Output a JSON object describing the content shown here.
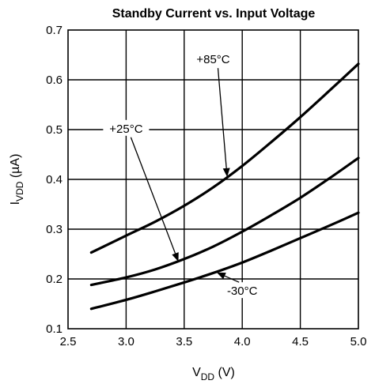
{
  "chart_data": {
    "type": "line",
    "title": "Standby Current vs. Input Voltage",
    "xlabel": {
      "main": "V",
      "sub": "DD",
      "unit": " (V)"
    },
    "ylabel": {
      "main": "I",
      "sub": "VDD",
      "unit": " (µA)"
    },
    "xlim": [
      2.5,
      5.0
    ],
    "ylim": [
      0.1,
      0.7
    ],
    "x_ticks": [
      "2.5",
      "3.0",
      "3.5",
      "4.0",
      "4.5",
      "5.0"
    ],
    "y_ticks": [
      "0.1",
      "0.2",
      "0.3",
      "0.4",
      "0.5",
      "0.6",
      "0.7"
    ],
    "grid": true,
    "series": [
      {
        "name": "+85°C",
        "x": [
          2.7,
          3.0,
          3.25,
          3.5,
          3.75,
          4.0,
          4.25,
          4.5,
          4.75,
          5.0
        ],
        "y": [
          0.253,
          0.287,
          0.315,
          0.347,
          0.384,
          0.427,
          0.475,
          0.525,
          0.578,
          0.632
        ]
      },
      {
        "name": "+25°C",
        "x": [
          2.7,
          3.0,
          3.25,
          3.5,
          3.75,
          4.0,
          4.25,
          4.5,
          4.75,
          5.0
        ],
        "y": [
          0.188,
          0.203,
          0.219,
          0.24,
          0.265,
          0.295,
          0.328,
          0.363,
          0.402,
          0.443
        ]
      },
      {
        "name": "-30°C",
        "x": [
          2.7,
          3.0,
          3.25,
          3.5,
          3.75,
          4.0,
          4.25,
          4.5,
          4.75,
          5.0
        ],
        "y": [
          0.14,
          0.158,
          0.175,
          0.193,
          0.212,
          0.233,
          0.257,
          0.282,
          0.307,
          0.333
        ]
      }
    ],
    "annotations": [
      {
        "text": "+85°C",
        "series": 0,
        "label_at": [
          3.75,
          0.633
        ],
        "arrow_to": [
          3.87,
          0.405
        ]
      },
      {
        "text": "+25°C",
        "series": 1,
        "label_at": [
          3.0,
          0.494
        ],
        "arrow_to": [
          3.45,
          0.235
        ]
      },
      {
        "text": "-30°C",
        "series": 2,
        "label_at": [
          4.0,
          0.168
        ],
        "arrow_to": [
          3.78,
          0.213
        ]
      }
    ]
  }
}
